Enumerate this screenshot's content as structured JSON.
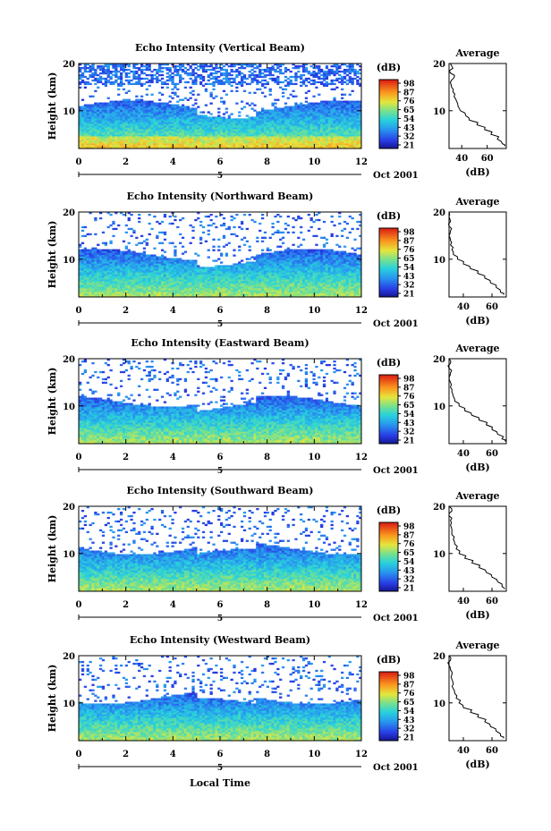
{
  "figure": {
    "x_title": "Local Time",
    "date_label": "Oct 2001",
    "day_label": "5",
    "colorbar_unit": "(dB)",
    "profile_xunit": "(dB)",
    "profile_title": "Average"
  },
  "chart_data": [
    {
      "type": "heatmap",
      "title": "Echo Intensity (Vertical Beam)",
      "xlabel": "Local Time",
      "ylabel": "Height (km)",
      "xlim": [
        0,
        12
      ],
      "ylim": [
        2,
        20
      ],
      "xticks": [
        "0",
        "2",
        "4",
        "6",
        "8",
        "10",
        "12"
      ],
      "yticks": [
        "10",
        "20"
      ],
      "colorbar": {
        "label": "(dB)",
        "ticks": [
          "21",
          "32",
          "43",
          "54",
          "65",
          "76",
          "87",
          "98"
        ]
      },
      "profile": {
        "title": "Average",
        "xlabel": "(dB)",
        "xlim": [
          30,
          75
        ],
        "xticks": [
          "40",
          "60"
        ],
        "yticks": [
          "10",
          "20"
        ],
        "points": [
          [
            2.5,
            74
          ],
          [
            3,
            72
          ],
          [
            4,
            68
          ],
          [
            5,
            63
          ],
          [
            6,
            58
          ],
          [
            7,
            52
          ],
          [
            8,
            46
          ],
          [
            9,
            43
          ],
          [
            10,
            39
          ],
          [
            11,
            37
          ],
          [
            12,
            36
          ],
          [
            13,
            34
          ],
          [
            14,
            33
          ],
          [
            15,
            32
          ],
          [
            16,
            31
          ],
          [
            17,
            34
          ],
          [
            18,
            31
          ],
          [
            19,
            33
          ],
          [
            20,
            31
          ]
        ]
      }
    },
    {
      "type": "heatmap",
      "title": "Echo Intensity (Northward Beam)",
      "xlabel": "Local Time",
      "ylabel": "Height (km)",
      "xlim": [
        0,
        12
      ],
      "ylim": [
        2,
        20
      ],
      "xticks": [
        "0",
        "2",
        "4",
        "6",
        "8",
        "10",
        "12"
      ],
      "yticks": [
        "10",
        "20"
      ],
      "colorbar": {
        "label": "(dB)",
        "ticks": [
          "21",
          "32",
          "43",
          "54",
          "65",
          "76",
          "87",
          "98"
        ]
      },
      "profile": {
        "title": "Average",
        "xlabel": "(dB)",
        "xlim": [
          30,
          70
        ],
        "xticks": [
          "40",
          "60"
        ],
        "yticks": [
          "10",
          "20"
        ],
        "points": [
          [
            2.5,
            68
          ],
          [
            3,
            66
          ],
          [
            4,
            63
          ],
          [
            5,
            59
          ],
          [
            6,
            55
          ],
          [
            7,
            50
          ],
          [
            8,
            45
          ],
          [
            9,
            40
          ],
          [
            10,
            36
          ],
          [
            11,
            33
          ],
          [
            12,
            32
          ],
          [
            13,
            31
          ],
          [
            14,
            31
          ],
          [
            15,
            30
          ],
          [
            16,
            31
          ],
          [
            17,
            30
          ],
          [
            18,
            31
          ],
          [
            19,
            30
          ],
          [
            20,
            30
          ]
        ]
      }
    },
    {
      "type": "heatmap",
      "title": "Echo Intensity (Eastward Beam)",
      "xlabel": "Local Time",
      "ylabel": "Height (km)",
      "xlim": [
        0,
        12
      ],
      "ylim": [
        2,
        20
      ],
      "xticks": [
        "0",
        "2",
        "4",
        "6",
        "8",
        "10",
        "12"
      ],
      "yticks": [
        "10",
        "20"
      ],
      "colorbar": {
        "label": "(dB)",
        "ticks": [
          "21",
          "32",
          "43",
          "54",
          "65",
          "76",
          "87",
          "98"
        ]
      },
      "profile": {
        "title": "Average",
        "xlabel": "(dB)",
        "xlim": [
          30,
          70
        ],
        "xticks": [
          "40",
          "60"
        ],
        "yticks": [
          "10",
          "20"
        ],
        "points": [
          [
            2.5,
            69
          ],
          [
            3,
            67
          ],
          [
            4,
            64
          ],
          [
            5,
            60
          ],
          [
            6,
            56
          ],
          [
            7,
            51
          ],
          [
            8,
            46
          ],
          [
            9,
            41
          ],
          [
            10,
            37
          ],
          [
            11,
            34
          ],
          [
            12,
            33
          ],
          [
            13,
            32
          ],
          [
            14,
            31
          ],
          [
            15,
            31
          ],
          [
            16,
            30
          ],
          [
            17,
            31
          ],
          [
            18,
            30
          ],
          [
            19,
            31
          ],
          [
            20,
            30
          ]
        ]
      }
    },
    {
      "type": "heatmap",
      "title": "Echo Intensity (Southward Beam)",
      "xlabel": "Local Time",
      "ylabel": "Height (km)",
      "xlim": [
        0,
        12
      ],
      "ylim": [
        2,
        20
      ],
      "xticks": [
        "0",
        "2",
        "4",
        "6",
        "8",
        "10",
        "12"
      ],
      "yticks": [
        "10",
        "20"
      ],
      "colorbar": {
        "label": "(dB)",
        "ticks": [
          "21",
          "32",
          "43",
          "54",
          "65",
          "76",
          "87",
          "98"
        ]
      },
      "profile": {
        "title": "Average",
        "xlabel": "(dB)",
        "xlim": [
          30,
          70
        ],
        "xticks": [
          "40",
          "60"
        ],
        "yticks": [
          "10",
          "20"
        ],
        "points": [
          [
            2.5,
            69
          ],
          [
            3,
            67
          ],
          [
            4,
            64
          ],
          [
            5,
            60
          ],
          [
            6,
            56
          ],
          [
            7,
            51
          ],
          [
            8,
            46
          ],
          [
            9,
            41
          ],
          [
            10,
            37
          ],
          [
            11,
            35
          ],
          [
            12,
            34
          ],
          [
            13,
            33
          ],
          [
            14,
            32
          ],
          [
            15,
            32
          ],
          [
            16,
            31
          ],
          [
            17,
            31
          ],
          [
            18,
            30
          ],
          [
            19,
            32
          ],
          [
            20,
            30
          ]
        ]
      }
    },
    {
      "type": "heatmap",
      "title": "Echo Intensity (Westward Beam)",
      "xlabel": "Local Time",
      "ylabel": "Height (km)",
      "xlim": [
        0,
        12
      ],
      "ylim": [
        2,
        20
      ],
      "xticks": [
        "0",
        "2",
        "4",
        "6",
        "8",
        "10",
        "12"
      ],
      "yticks": [
        "10",
        "20"
      ],
      "colorbar": {
        "label": "(dB)",
        "ticks": [
          "21",
          "32",
          "43",
          "54",
          "65",
          "76",
          "87",
          "98"
        ]
      },
      "profile": {
        "title": "Average",
        "xlabel": "(dB)",
        "xlim": [
          30,
          70
        ],
        "xticks": [
          "40",
          "60"
        ],
        "yticks": [
          "10",
          "20"
        ],
        "points": [
          [
            2.5,
            68
          ],
          [
            3,
            66
          ],
          [
            4,
            63
          ],
          [
            5,
            59
          ],
          [
            6,
            55
          ],
          [
            7,
            50
          ],
          [
            8,
            45
          ],
          [
            9,
            40
          ],
          [
            10,
            37
          ],
          [
            11,
            35
          ],
          [
            12,
            34
          ],
          [
            13,
            33
          ],
          [
            14,
            33
          ],
          [
            15,
            32
          ],
          [
            16,
            32
          ],
          [
            17,
            31
          ],
          [
            18,
            30
          ],
          [
            19,
            31
          ],
          [
            20,
            30
          ]
        ]
      }
    }
  ]
}
